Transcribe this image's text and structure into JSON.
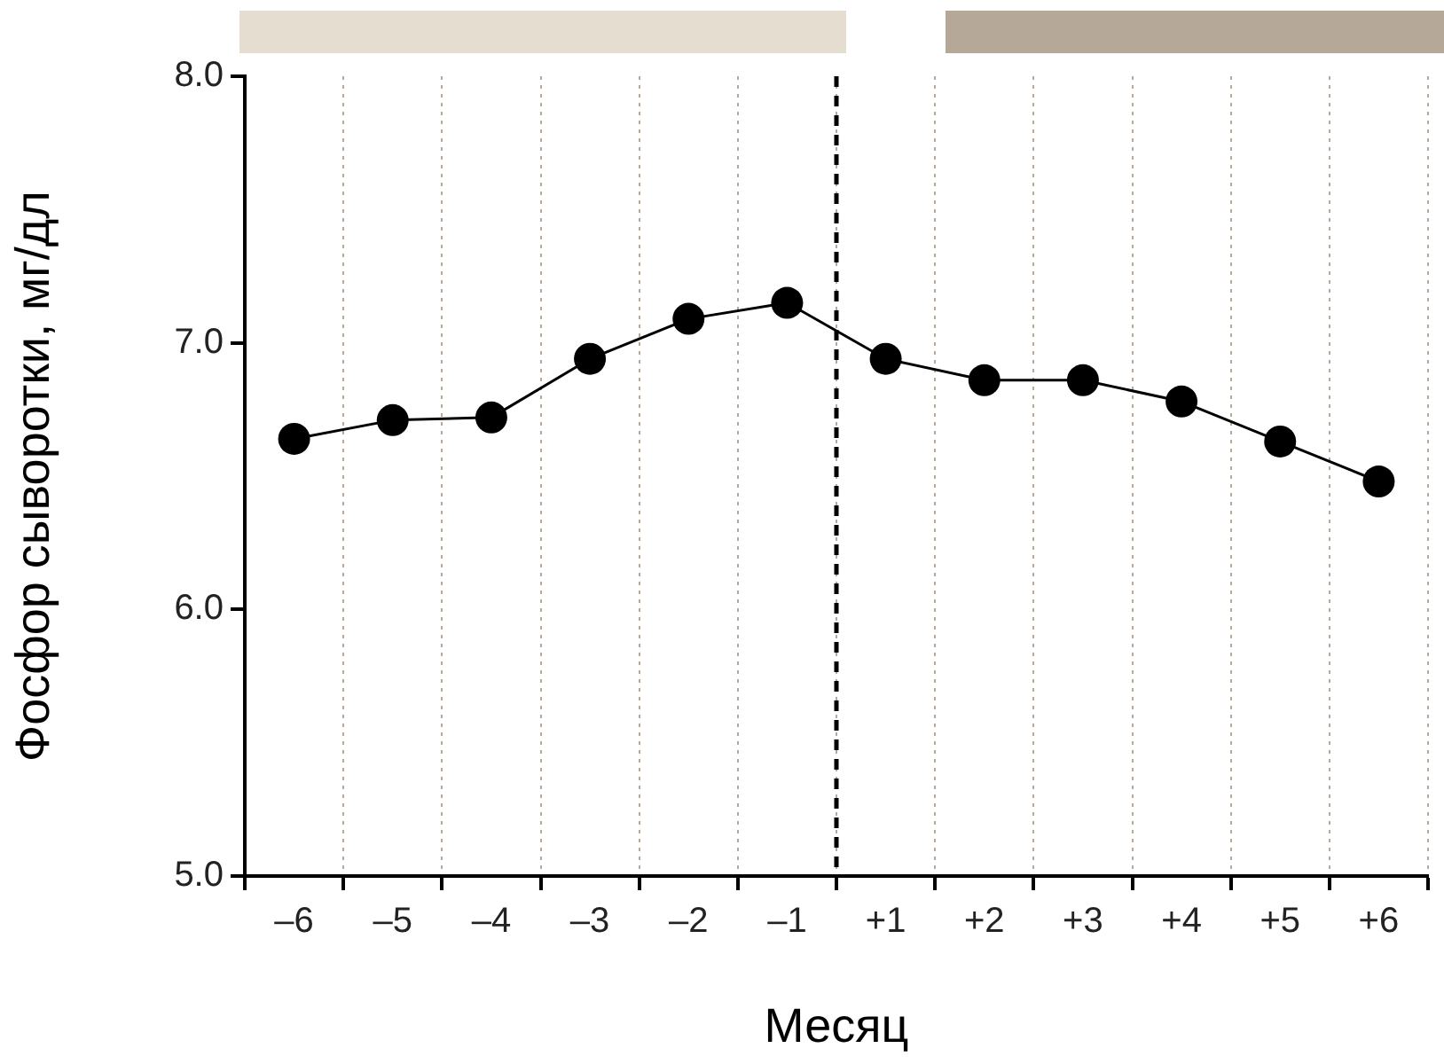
{
  "chart_data": {
    "type": "line",
    "xlabel": "Месяц",
    "ylabel": "Фосфор сыворотки, мг/дл",
    "categories": [
      "–6",
      "–5",
      "–4",
      "–3",
      "–2",
      "–1",
      "+1",
      "+2",
      "+3",
      "+4",
      "+5",
      "+6"
    ],
    "series": [
      {
        "color": "#000000",
        "values": [
          6.64,
          6.71,
          6.72,
          6.94,
          7.09,
          7.15,
          6.94,
          6.86,
          6.86,
          6.78,
          6.63,
          6.48
        ]
      }
    ],
    "ylim": [
      5,
      8
    ],
    "yticks": [
      {
        "value": 5,
        "label": "5.0"
      },
      {
        "value": 6,
        "label": "6.0"
      },
      {
        "value": 7,
        "label": "7.0"
      },
      {
        "value": 8,
        "label": "8.0"
      }
    ],
    "grid": "x",
    "legend": false,
    "marker": "circle",
    "line_style": "solid",
    "ref_lines": [
      {
        "axis": "x",
        "value": "+1",
        "color": "#000000",
        "line_style": "dashed"
      }
    ]
  }
}
